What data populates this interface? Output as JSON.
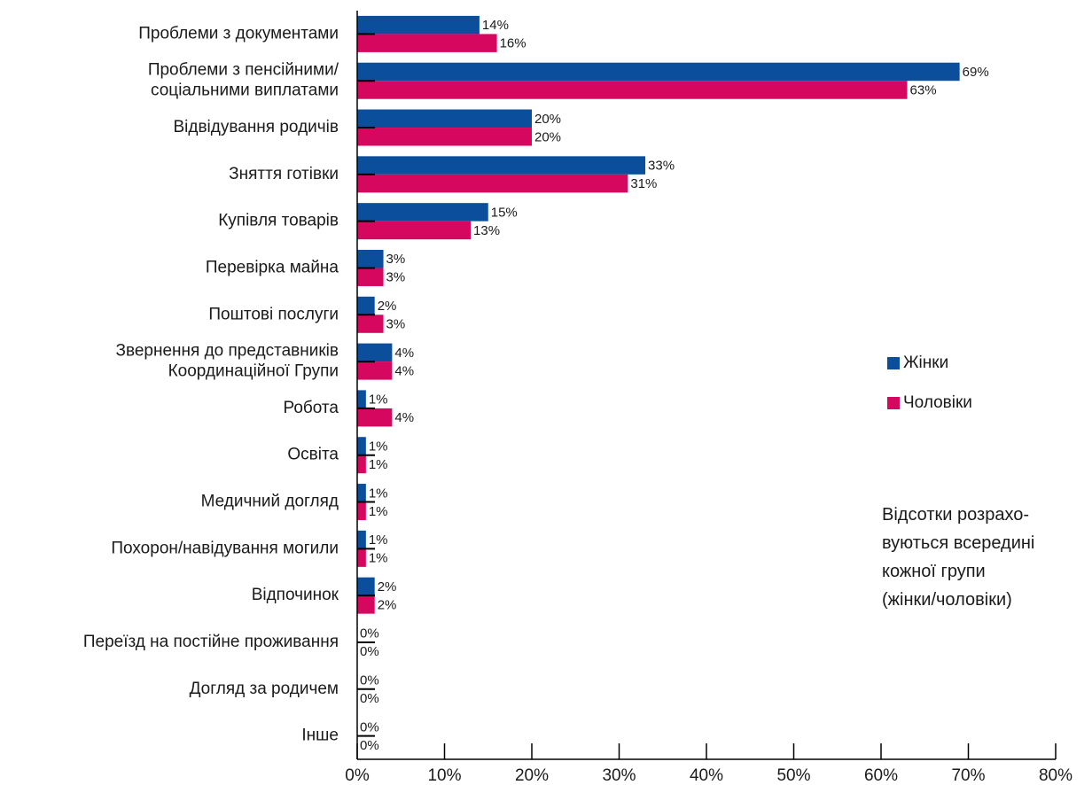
{
  "chart_data": {
    "type": "hbar",
    "categories": [
      "Проблеми з документами",
      "Проблеми з пенсійними/\nсоціальними виплатами",
      "Відвідування родичів",
      "Зняття готівки",
      "Купівля товарів",
      "Перевірка майна",
      "Поштові послуги",
      "Звернення до представників\nКоординаційної Групи",
      "Робота",
      "Освіта",
      "Медичний догляд",
      "Похорон/навідування могили",
      "Відпочинок",
      "Переїзд на постійне проживання",
      "Догляд за родичем",
      "Інше"
    ],
    "series": [
      {
        "name": "Жінки",
        "color": "#0b4f9c",
        "values": [
          14,
          69,
          20,
          33,
          15,
          3,
          2,
          4,
          1,
          1,
          1,
          1,
          2,
          0,
          0,
          0
        ],
        "value_labels": [
          "14%",
          "69%",
          "20%",
          "33%",
          "15%",
          "3%",
          "2%",
          "4%",
          "1%",
          "1%",
          "1%",
          "1%",
          "2%",
          "0%",
          "0%",
          "0%"
        ]
      },
      {
        "name": "Чоловіки",
        "color": "#d5075f",
        "values": [
          16,
          63,
          20,
          31,
          13,
          3,
          3,
          4,
          4,
          1,
          1,
          1,
          2,
          0,
          0,
          0
        ],
        "value_labels": [
          "16%",
          "63%",
          "20%",
          "31%",
          "13%",
          "3%",
          "3%",
          "4%",
          "4%",
          "1%",
          "1%",
          "1%",
          "2%",
          "0%",
          "0%",
          "0%"
        ]
      }
    ],
    "xlim": [
      0,
      80
    ],
    "xticks": [
      {
        "value": 0,
        "label": "0%"
      },
      {
        "value": 10,
        "label": "10%"
      },
      {
        "value": 20,
        "label": "20%"
      },
      {
        "value": 30,
        "label": "30%"
      },
      {
        "value": 40,
        "label": "40%"
      },
      {
        "value": 50,
        "label": "50%"
      },
      {
        "value": 60,
        "label": "60%"
      },
      {
        "value": 70,
        "label": "70%"
      },
      {
        "value": 80,
        "label": "80%"
      }
    ],
    "annotation": "Відсотки розрахо-\nвуються всередині\nкожної групи\n(жінки/чоловіки)"
  }
}
